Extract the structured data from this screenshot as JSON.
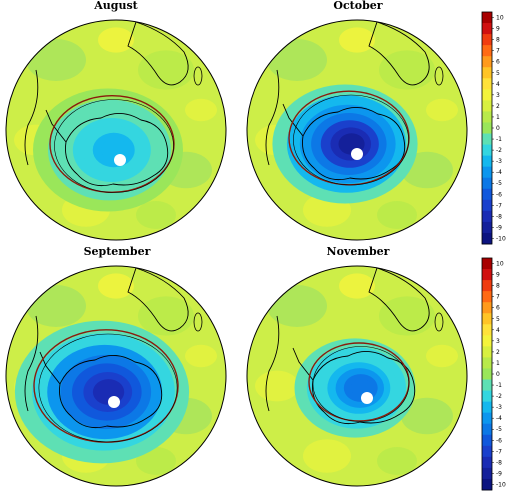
{
  "figure": {
    "panels": [
      {
        "id": "august",
        "title": "August",
        "depth": 0.35,
        "center_dx": 0,
        "center_dy": 0,
        "contour_size": 0.62
      },
      {
        "id": "october",
        "title": "October",
        "depth": 0.95,
        "center_dx": -4,
        "center_dy": -6,
        "contour_size": 0.6
      },
      {
        "id": "september",
        "title": "September",
        "depth": 0.85,
        "center_dx": -6,
        "center_dy": -4,
        "contour_size": 0.72
      },
      {
        "id": "november",
        "title": "November",
        "depth": 0.55,
        "center_dx": 6,
        "center_dy": -8,
        "contour_size": 0.5
      }
    ],
    "colorbar": {
      "ticks": [
        "10",
        "9",
        "8",
        "7",
        "6",
        "5",
        "4",
        "3",
        "2",
        "1",
        "0",
        "-1",
        "-2",
        "-3",
        "-4",
        "-5",
        "-6",
        "-7",
        "-8",
        "-9",
        "-10"
      ],
      "colors": [
        "#a80000",
        "#d01010",
        "#f03c10",
        "#ff6a14",
        "#ff9a1c",
        "#ffc426",
        "#ffe23a",
        "#f4f43c",
        "#d8f040",
        "#b8ea4a",
        "#9ae65a",
        "#5ee0b4",
        "#34d6e0",
        "#14b8ee",
        "#0c96ee",
        "#0c78e6",
        "#1058dc",
        "#1a40cc",
        "#1a2cb4",
        "#14209a",
        "#0c1480"
      ]
    }
  }
}
